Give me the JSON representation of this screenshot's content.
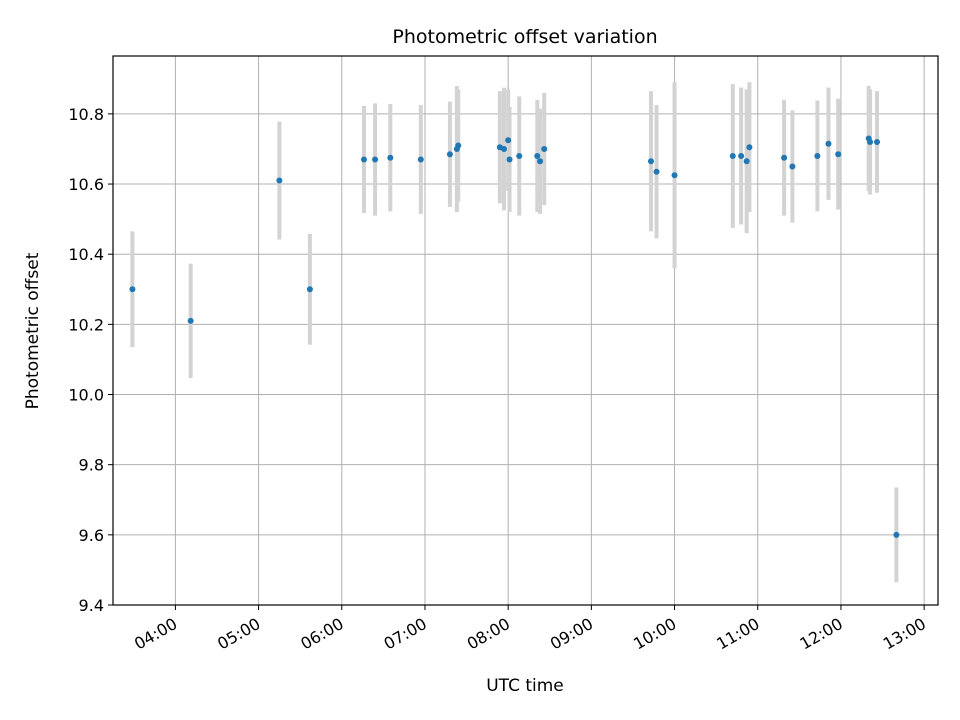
{
  "chart_data": {
    "type": "scatter",
    "title": "Photometric offset variation",
    "xlabel": "UTC time",
    "ylabel": "Photometric offset",
    "ylim": [
      9.4,
      10.965
    ],
    "xlim": [
      "03:15",
      "13:10"
    ],
    "x_ticks": [
      "04:00",
      "05:00",
      "06:00",
      "07:00",
      "08:00",
      "09:00",
      "10:00",
      "11:00",
      "12:00",
      "13:00"
    ],
    "y_ticks": [
      "9.4",
      "9.6",
      "9.8",
      "10.0",
      "10.2",
      "10.4",
      "10.6",
      "10.8"
    ],
    "grid": true,
    "colors": {
      "point": "#1f77b4",
      "errorbar": "#d3d3d3",
      "grid": "#b0b0b0"
    },
    "series": [
      {
        "points": [
          {
            "x": "03:29",
            "y": 10.3,
            "err": 0.165
          },
          {
            "x": "04:11",
            "y": 10.21,
            "err": 0.163
          },
          {
            "x": "05:15",
            "y": 10.61,
            "err": 0.168
          },
          {
            "x": "05:37",
            "y": 10.3,
            "err": 0.158
          },
          {
            "x": "06:16",
            "y": 10.67,
            "err": 0.153
          },
          {
            "x": "06:24",
            "y": 10.67,
            "err": 0.16
          },
          {
            "x": "06:35",
            "y": 10.675,
            "err": 0.153
          },
          {
            "x": "06:57",
            "y": 10.67,
            "err": 0.155
          },
          {
            "x": "07:18",
            "y": 10.685,
            "err": 0.15
          },
          {
            "x": "07:23",
            "y": 10.7,
            "err": 0.18
          },
          {
            "x": "07:24",
            "y": 10.71,
            "err": 0.16
          },
          {
            "x": "07:54",
            "y": 10.705,
            "err": 0.16
          },
          {
            "x": "07:57",
            "y": 10.7,
            "err": 0.175
          },
          {
            "x": "08:00",
            "y": 10.725,
            "err": 0.145
          },
          {
            "x": "08:01",
            "y": 10.67,
            "err": 0.15
          },
          {
            "x": "08:08",
            "y": 10.68,
            "err": 0.17
          },
          {
            "x": "08:21",
            "y": 10.68,
            "err": 0.16
          },
          {
            "x": "08:23",
            "y": 10.665,
            "err": 0.15
          },
          {
            "x": "08:26",
            "y": 10.7,
            "err": 0.16
          },
          {
            "x": "09:43",
            "y": 10.665,
            "err": 0.2
          },
          {
            "x": "09:47",
            "y": 10.635,
            "err": 0.19
          },
          {
            "x": "10:00",
            "y": 10.625,
            "err": 0.265
          },
          {
            "x": "10:42",
            "y": 10.68,
            "err": 0.205
          },
          {
            "x": "10:48",
            "y": 10.68,
            "err": 0.195
          },
          {
            "x": "10:52",
            "y": 10.665,
            "err": 0.205
          },
          {
            "x": "10:54",
            "y": 10.705,
            "err": 0.185
          },
          {
            "x": "11:19",
            "y": 10.675,
            "err": 0.165
          },
          {
            "x": "11:25",
            "y": 10.65,
            "err": 0.16
          },
          {
            "x": "11:43",
            "y": 10.68,
            "err": 0.158
          },
          {
            "x": "11:51",
            "y": 10.715,
            "err": 0.16
          },
          {
            "x": "11:58",
            "y": 10.685,
            "err": 0.158
          },
          {
            "x": "12:20",
            "y": 10.73,
            "err": 0.15
          },
          {
            "x": "12:21",
            "y": 10.72,
            "err": 0.15
          },
          {
            "x": "12:26",
            "y": 10.72,
            "err": 0.145
          },
          {
            "x": "12:40",
            "y": 9.6,
            "err": 0.135
          }
        ]
      }
    ]
  }
}
